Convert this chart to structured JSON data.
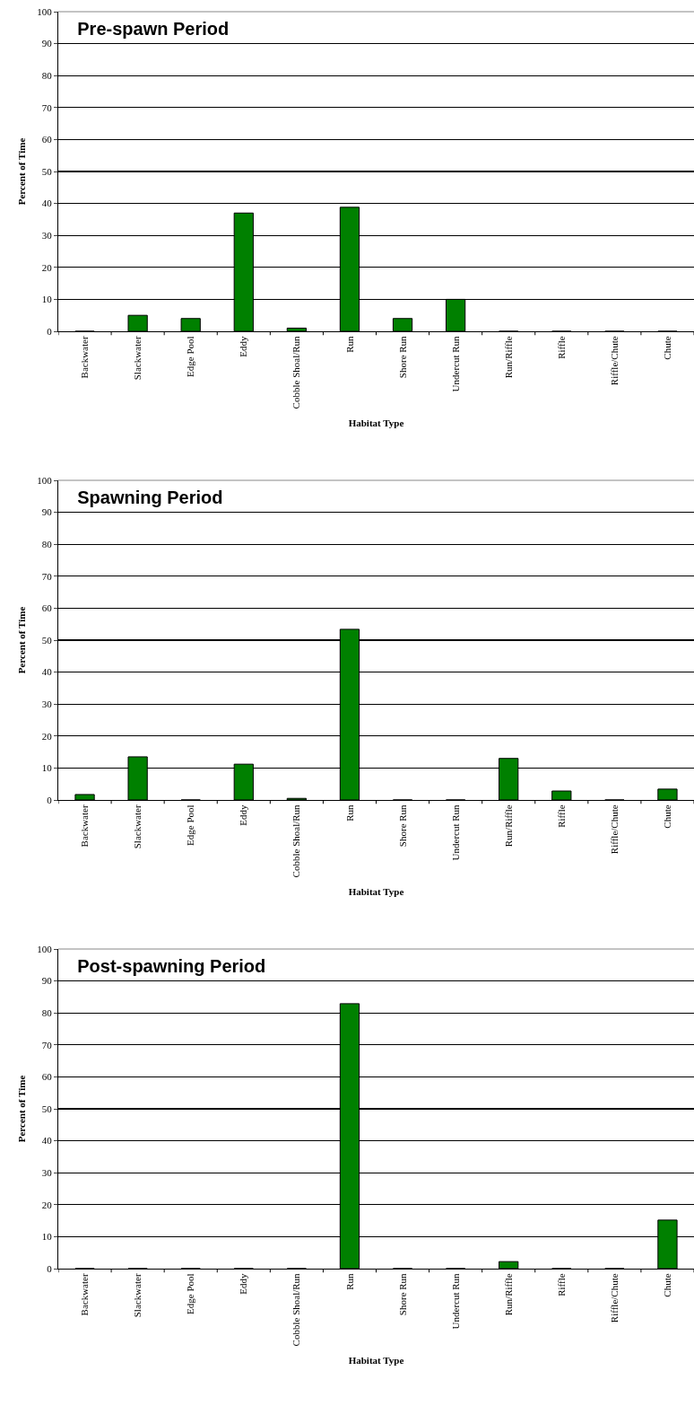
{
  "chart_data": [
    {
      "type": "bar",
      "title": "Pre-spawn Period",
      "xlabel": "Habitat Type",
      "ylabel": "Percent of Time",
      "categories": [
        "Backwater",
        "Slackwater",
        "Edge Pool",
        "Eddy",
        "Cobble Shoal/Run",
        "Run",
        "Shore Run",
        "Undercut Run",
        "Run/Riffle",
        "Riffle",
        "Riffle/Chute",
        "Chute"
      ],
      "values": [
        0,
        5,
        4,
        37,
        1,
        38.8,
        4,
        10,
        0,
        0,
        0,
        0
      ],
      "color": "#008000",
      "ylim": [
        0,
        100
      ],
      "yticks": [
        0,
        10,
        20,
        30,
        40,
        50,
        60,
        70,
        80,
        90,
        100
      ],
      "grid": "y"
    },
    {
      "type": "bar",
      "title": "Spawning Period",
      "xlabel": "Habitat Type",
      "ylabel": "Percent of Time",
      "categories": [
        "Backwater",
        "Slackwater",
        "Edge Pool",
        "Eddy",
        "Cobble Shoal/Run",
        "Run",
        "Shore Run",
        "Undercut Run",
        "Run/Riffle",
        "Riffle",
        "Riffle/Chute",
        "Chute"
      ],
      "values": [
        1.7,
        13.5,
        0,
        11.2,
        0.5,
        53.4,
        0,
        0,
        13,
        2.8,
        0,
        3.4
      ],
      "color": "#008000",
      "ylim": [
        0,
        100
      ],
      "yticks": [
        0,
        10,
        20,
        30,
        40,
        50,
        60,
        70,
        80,
        90,
        100
      ],
      "grid": "y"
    },
    {
      "type": "bar",
      "title": "Post-spawning Period",
      "xlabel": "Habitat Type",
      "ylabel": "Percent of Time",
      "categories": [
        "Backwater",
        "Slackwater",
        "Edge Pool",
        "Eddy",
        "Cobble Shoal/Run",
        "Run",
        "Shore Run",
        "Undercut Run",
        "Run/Riffle",
        "Riffle",
        "Riffle/Chute",
        "Chute"
      ],
      "values": [
        0,
        0,
        0,
        0,
        0,
        82.9,
        0,
        0,
        2.2,
        0,
        0,
        15.2
      ],
      "color": "#008000",
      "ylim": [
        0,
        100
      ],
      "yticks": [
        0,
        10,
        20,
        30,
        40,
        50,
        60,
        70,
        80,
        90,
        100
      ],
      "grid": "y"
    }
  ]
}
